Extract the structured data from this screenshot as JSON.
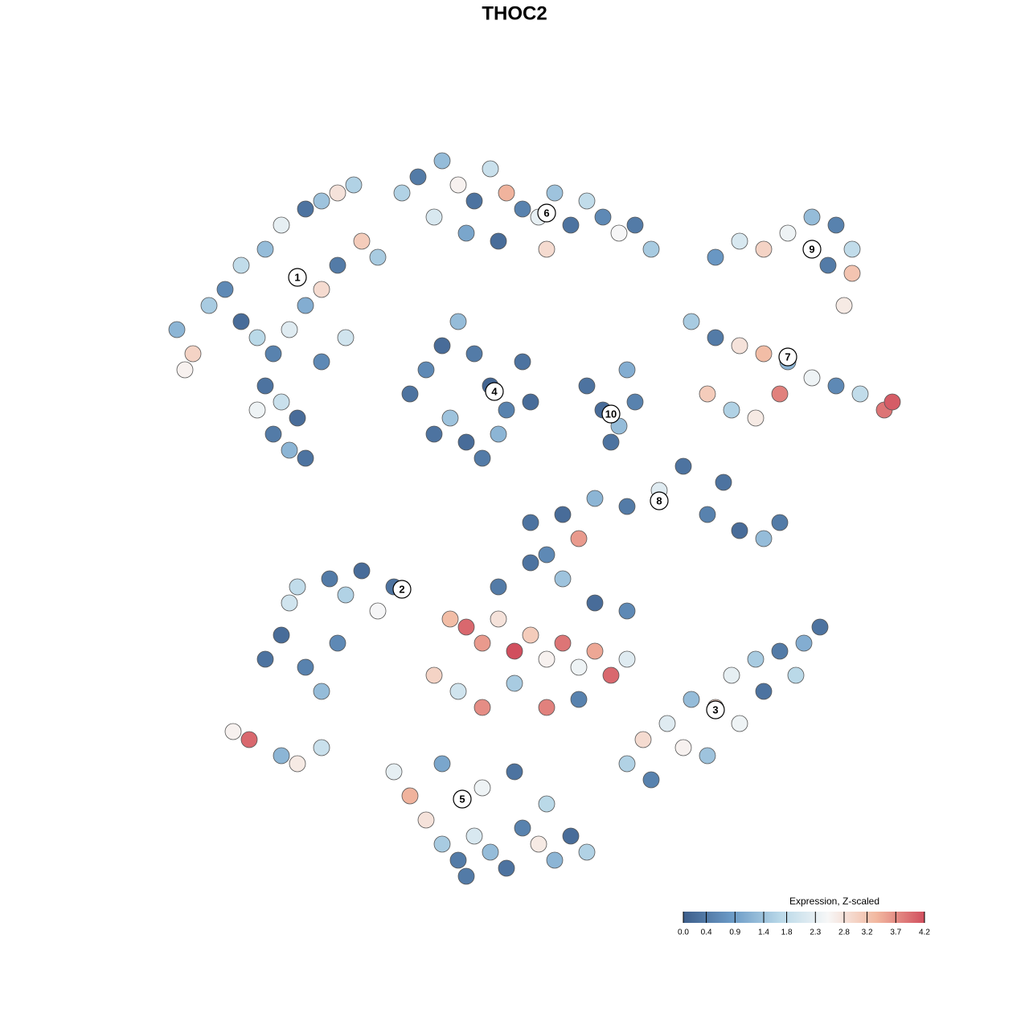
{
  "chart_data": {
    "type": "scatter",
    "title": "THOC2",
    "xlim": [
      15,
      115
    ],
    "ylim": [
      15,
      110
    ],
    "x": [
      22,
      24,
      23,
      26,
      28,
      30,
      33,
      35,
      38,
      40,
      42,
      44,
      30,
      32,
      34,
      36,
      38,
      40,
      42,
      45,
      47,
      33,
      35,
      37,
      34,
      36,
      38,
      32,
      40,
      43,
      50,
      52,
      55,
      57,
      59,
      61,
      63,
      65,
      67,
      69,
      71,
      73,
      75,
      77,
      79,
      81,
      54,
      58,
      62,
      68,
      51,
      53,
      55,
      57,
      59,
      61,
      63,
      65,
      56,
      58,
      60,
      54,
      62,
      66,
      73,
      75,
      77,
      79,
      76,
      78,
      86,
      89,
      92,
      95,
      98,
      101,
      104,
      107,
      110,
      111,
      88,
      91,
      94,
      97,
      89,
      92,
      95,
      98,
      101,
      104,
      106,
      106,
      105,
      103,
      66,
      70,
      74,
      78,
      82,
      85,
      88,
      92,
      95,
      97,
      90,
      72,
      68,
      33,
      35,
      36,
      38,
      40,
      41,
      43,
      45,
      47,
      49,
      42,
      37,
      29,
      31,
      35,
      37,
      40,
      78,
      80,
      83,
      86,
      89,
      91,
      94,
      97,
      100,
      102,
      85,
      88,
      92,
      95,
      99,
      81,
      56,
      58,
      60,
      62,
      64,
      66,
      68,
      70,
      72,
      74,
      76,
      78,
      62,
      66,
      70,
      74,
      78,
      54,
      57,
      60,
      64,
      68,
      72,
      49,
      51,
      53,
      55,
      57,
      59,
      61,
      63,
      65,
      67,
      69,
      71,
      73,
      55,
      60,
      64,
      68,
      58
    ],
    "y": [
      87,
      84,
      82,
      90,
      92,
      95,
      97,
      100,
      102,
      103,
      104,
      105,
      88,
      86,
      84,
      87,
      90,
      92,
      95,
      98,
      96,
      80,
      78,
      76,
      74,
      72,
      71,
      77,
      83,
      86,
      104,
      106,
      108,
      105,
      103,
      107,
      104,
      102,
      101,
      104,
      100,
      103,
      101,
      99,
      100,
      97,
      101,
      99,
      98,
      97,
      79,
      82,
      85,
      88,
      84,
      80,
      77,
      83,
      76,
      73,
      71,
      74,
      74,
      78,
      80,
      77,
      75,
      78,
      73,
      82,
      88,
      86,
      85,
      84,
      83,
      81,
      80,
      79,
      77,
      78,
      79,
      77,
      76,
      79,
      96,
      98,
      97,
      99,
      101,
      100,
      97,
      94,
      90,
      95,
      63,
      64,
      66,
      65,
      67,
      70,
      64,
      62,
      61,
      63,
      68,
      61,
      59,
      46,
      49,
      53,
      45,
      42,
      56,
      54,
      57,
      52,
      55,
      48,
      55,
      37,
      36,
      34,
      33,
      35,
      33,
      36,
      38,
      41,
      40,
      44,
      46,
      47,
      48,
      50,
      35,
      34,
      38,
      42,
      44,
      31,
      51,
      50,
      48,
      51,
      47,
      49,
      46,
      48,
      45,
      47,
      44,
      46,
      55,
      58,
      56,
      53,
      52,
      44,
      42,
      40,
      43,
      40,
      41,
      32,
      29,
      26,
      23,
      21,
      24,
      22,
      20,
      25,
      23,
      21,
      24,
      22,
      33,
      30,
      32,
      28,
      19
    ],
    "values": [
      1.2,
      3.0,
      2.6,
      1.5,
      0.6,
      1.8,
      1.3,
      2.3,
      0.3,
      1.4,
      2.8,
      1.6,
      0.2,
      1.7,
      0.5,
      2.2,
      1.1,
      2.9,
      0.4,
      3.1,
      1.5,
      0.3,
      1.9,
      0.2,
      0.4,
      1.2,
      0.3,
      2.4,
      0.6,
      2.0,
      1.6,
      0.4,
      1.3,
      2.6,
      0.3,
      1.9,
      3.4,
      0.5,
      2.3,
      1.4,
      0.3,
      1.8,
      0.6,
      2.5,
      0.4,
      1.5,
      2.1,
      1.0,
      0.2,
      2.9,
      0.3,
      0.6,
      0.2,
      1.3,
      0.4,
      0.1,
      0.5,
      0.3,
      1.4,
      0.2,
      0.4,
      0.3,
      1.2,
      0.2,
      0.3,
      0.2,
      1.3,
      0.5,
      0.3,
      1.1,
      1.5,
      0.4,
      2.8,
      3.3,
      1.2,
      2.4,
      0.6,
      1.8,
      3.9,
      4.1,
      3.1,
      1.6,
      2.7,
      3.8,
      0.8,
      2.1,
      3.0,
      2.4,
      1.3,
      0.5,
      1.8,
      3.2,
      2.7,
      0.4,
      0.3,
      0.2,
      1.2,
      0.4,
      2.2,
      0.3,
      0.5,
      0.2,
      1.3,
      0.4,
      0.3,
      3.6,
      0.6,
      0.3,
      0.2,
      2.0,
      0.5,
      1.3,
      0.4,
      1.6,
      0.2,
      2.5,
      0.3,
      0.6,
      1.8,
      2.6,
      4.0,
      1.2,
      2.7,
      1.9,
      1.6,
      2.9,
      2.2,
      1.3,
      3.0,
      2.3,
      1.5,
      0.4,
      1.1,
      0.3,
      2.6,
      1.4,
      2.4,
      0.3,
      1.7,
      0.5,
      3.3,
      4.0,
      3.6,
      2.8,
      4.2,
      3.1,
      2.6,
      3.9,
      2.4,
      3.5,
      4.0,
      2.2,
      0.4,
      0.3,
      1.4,
      0.2,
      0.6,
      3.0,
      2.0,
      3.7,
      1.5,
      3.8,
      0.5,
      2.3,
      3.4,
      2.8,
      1.5,
      0.4,
      2.1,
      1.3,
      0.3,
      0.5,
      2.7,
      1.2,
      0.2,
      1.6,
      1.0,
      2.4,
      0.3,
      1.7,
      0.4
    ],
    "clusters": [
      {
        "label": "1",
        "x": 37,
        "y": 93.5
      },
      {
        "label": "2",
        "x": 50,
        "y": 54.7
      },
      {
        "label": "3",
        "x": 89,
        "y": 39.7
      },
      {
        "label": "4",
        "x": 61.5,
        "y": 79.3
      },
      {
        "label": "5",
        "x": 57.5,
        "y": 28.6
      },
      {
        "label": "6",
        "x": 68,
        "y": 101.5
      },
      {
        "label": "7",
        "x": 98,
        "y": 83.6
      },
      {
        "label": "8",
        "x": 82,
        "y": 65.7
      },
      {
        "label": "9",
        "x": 101,
        "y": 97
      },
      {
        "label": "10",
        "x": 76,
        "y": 76.5
      }
    ],
    "colorbar": {
      "title": "Expression, Z-scaled",
      "clim": [
        0,
        4.2
      ],
      "colors": [
        "#3d5e8b",
        "#6b9ac6",
        "#b8d8e8",
        "#f7f7f7",
        "#f2b8a0",
        "#d14f5e"
      ],
      "ticks": [
        {
          "value": 0,
          "label": "0.0"
        },
        0.4,
        0.9,
        1.4,
        1.8,
        2.3,
        2.8,
        3.2,
        3.7,
        4.2
      ]
    }
  }
}
